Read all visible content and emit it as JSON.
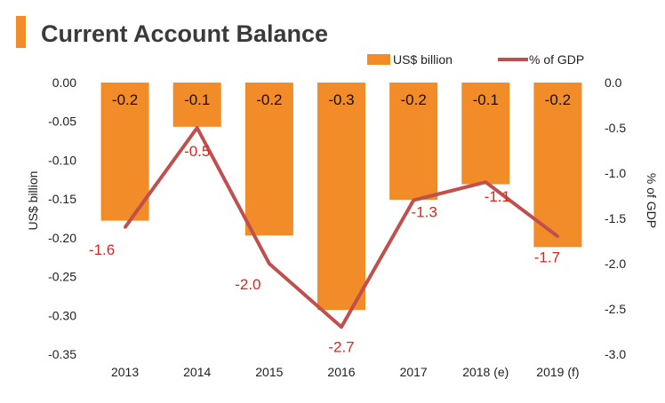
{
  "chart_data": {
    "type": "bar+line",
    "title": "Current Account Balance",
    "categories": [
      "2013",
      "2014",
      "2015",
      "2016",
      "2017",
      "2018 (e)",
      "2019 (f)"
    ],
    "series": [
      {
        "name": "US$ billion",
        "type": "bar",
        "axis": "left",
        "values": [
          -0.178,
          -0.057,
          -0.197,
          -0.293,
          -0.151,
          -0.131,
          -0.212
        ],
        "labels": [
          "-0.2",
          "-0.1",
          "-0.2",
          "-0.3",
          "-0.2",
          "-0.1",
          "-0.2"
        ]
      },
      {
        "name": "% of GDP",
        "type": "line",
        "axis": "right",
        "values": [
          -1.6,
          -0.5,
          -2.0,
          -2.7,
          -1.3,
          -1.1,
          -1.7
        ],
        "labels": [
          "-1.6",
          "-0.5",
          "-2.0",
          "-2.7",
          "-1.3",
          "-1.1",
          "-1.7"
        ]
      }
    ],
    "ylabel_left": "US$ billion",
    "ylabel_right": "% of GDP",
    "ylim_left": [
      -0.35,
      0.0
    ],
    "ylim_right": [
      -3.0,
      0.0
    ],
    "yticks_left": [
      "0.00",
      "-0.05",
      "-0.10",
      "-0.15",
      "-0.20",
      "-0.25",
      "-0.30",
      "-0.35"
    ],
    "yticks_right": [
      "0.0",
      "-0.5",
      "-1.0",
      "-1.5",
      "-2.0",
      "-2.5",
      "-3.0"
    ],
    "legend_position": "top-right",
    "grid": false,
    "colors": {
      "bar": "#f28c28",
      "line": "#c0504d",
      "line_label": "#d9261c",
      "text": "#222222"
    }
  }
}
